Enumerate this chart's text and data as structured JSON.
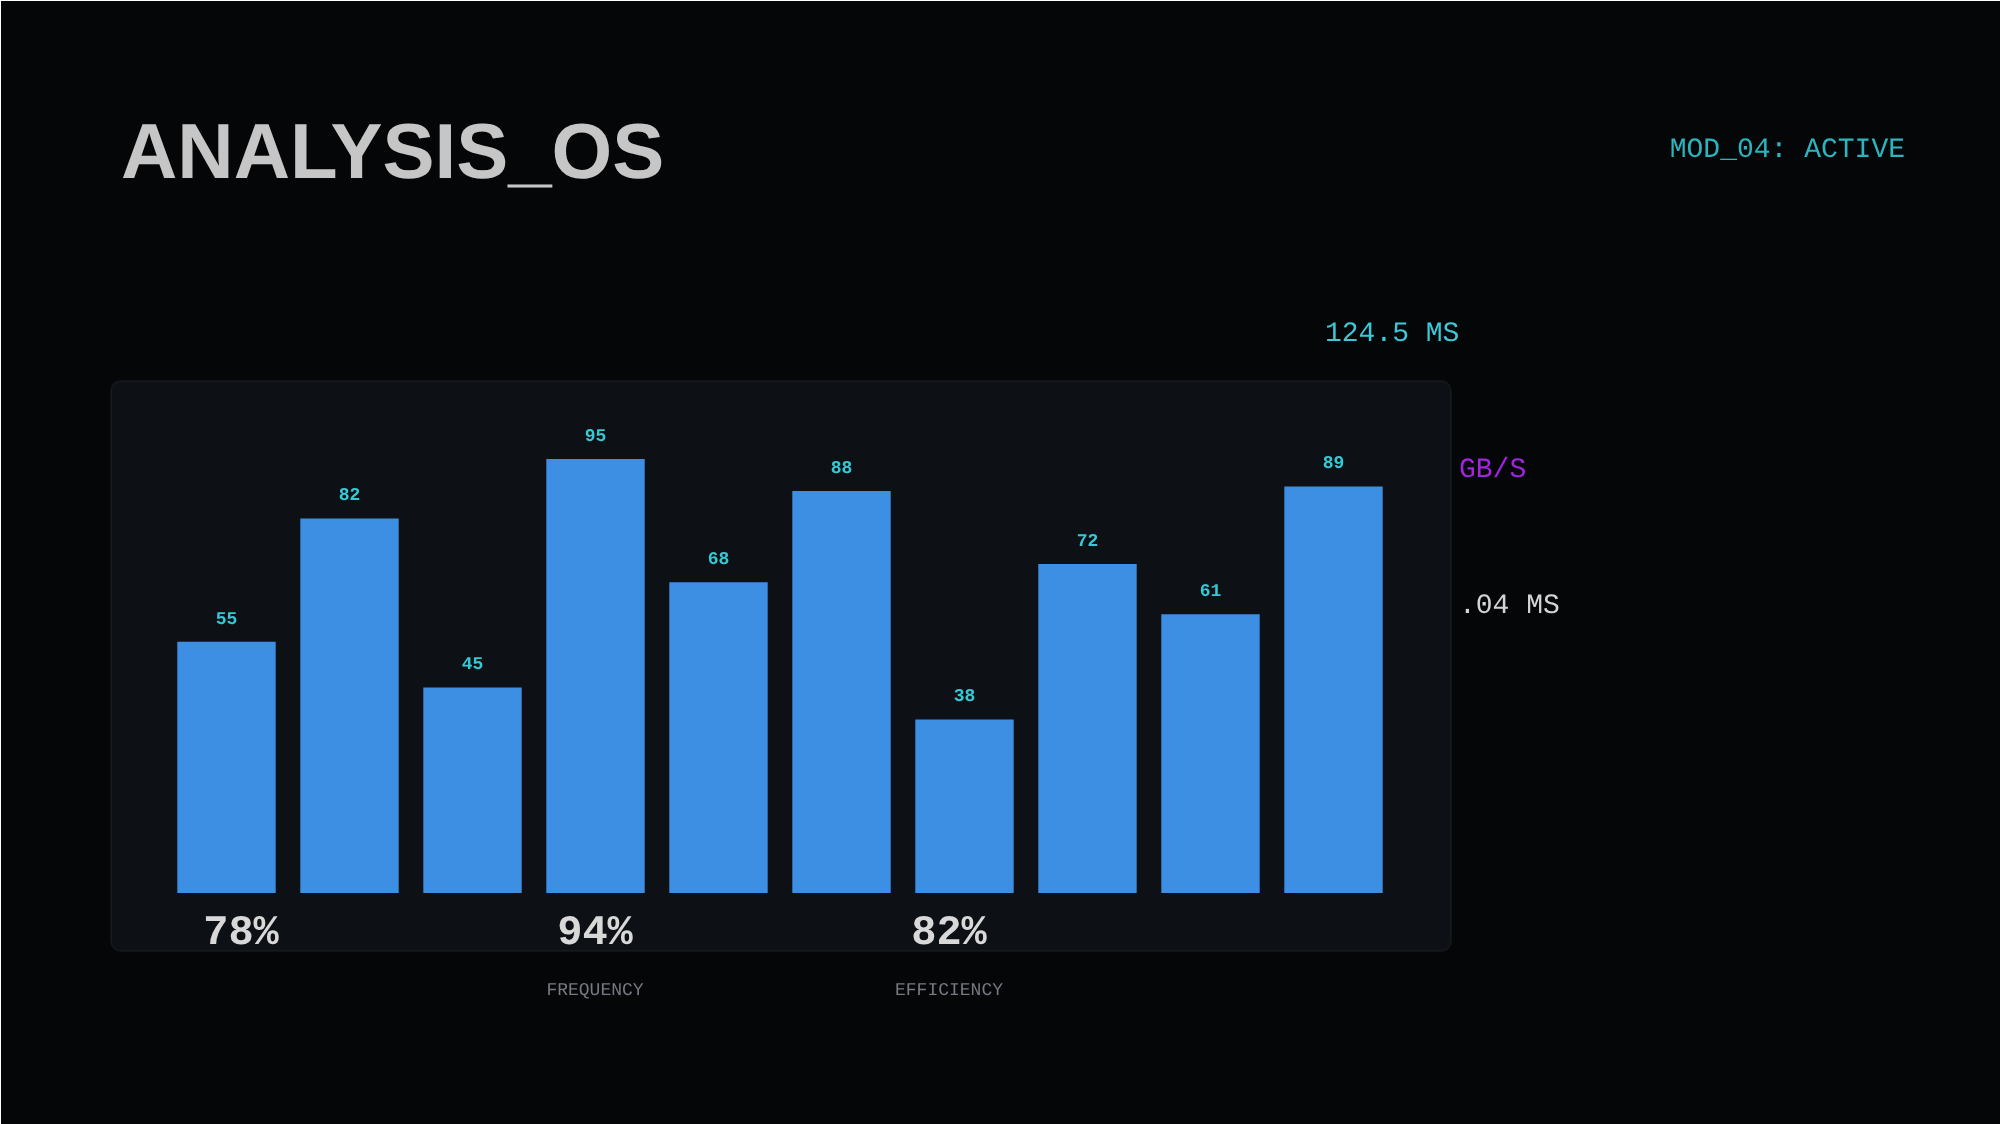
{
  "chart_data": {
    "type": "bar",
    "title": "ANALYSIS_OS",
    "categories": [
      null,
      null,
      null,
      null,
      null,
      null,
      null,
      null,
      null,
      null
    ],
    "values": [
      55,
      82,
      45,
      95,
      68,
      88,
      38,
      72,
      61,
      89
    ],
    "color": "#3d8fe4",
    "data_labels": true,
    "tick_labels": false,
    "annotations": [
      "MOD_04: ACTIVE",
      "124.5 MS",
      "GB/S",
      ".04 MS",
      "78%",
      "94%",
      "82%",
      "FREQUENCY",
      "EFFICIENCY"
    ]
  }
}
